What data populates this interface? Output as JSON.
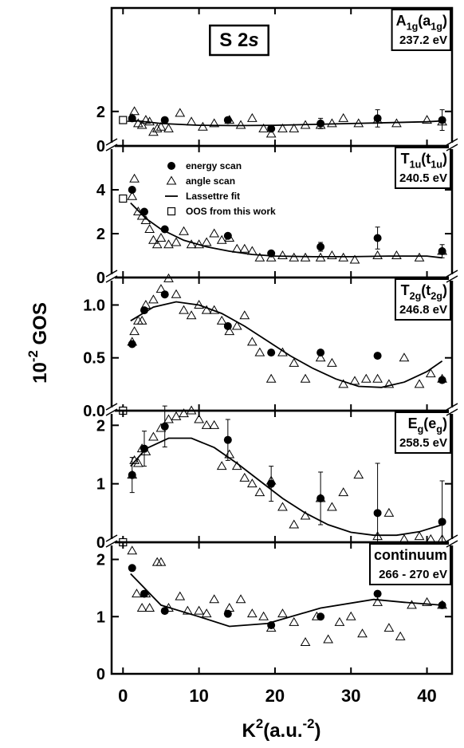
{
  "x_axis": {
    "xlim": [
      -1.5,
      43.3
    ],
    "xticks": [
      0,
      10,
      20,
      30,
      40
    ],
    "label": [
      {
        "text": "K"
      },
      {
        "sup": "2"
      },
      {
        "text": "(a.u."
      },
      {
        "sup": "-2"
      },
      {
        "text": ")"
      }
    ]
  },
  "y_axis": {
    "label": [
      {
        "text": "10"
      },
      {
        "sup": "-2"
      },
      {
        "text": " GOS"
      }
    ]
  },
  "chart_data": [
    {
      "type": "scatter",
      "title": [
        {
          "text": "S 2"
        },
        {
          "italic": "s"
        }
      ],
      "symmetry": [
        {
          "text": "A"
        },
        {
          "sub": "1g"
        },
        {
          "text": "(a"
        },
        {
          "sub": "1g"
        },
        {
          "text": ")"
        }
      ],
      "energy": "237.2 eV",
      "ylim": [
        0,
        8
      ],
      "yticks": [
        0,
        2
      ],
      "series": [
        {
          "marker": "circle",
          "color": "#000000",
          "x": [
            1.2,
            5.5,
            13.8,
            19.5,
            26,
            33.5,
            42
          ],
          "values": [
            1.6,
            1.5,
            1.5,
            1.0,
            1.3,
            1.6,
            1.5
          ],
          "errors": [
            null,
            null,
            null,
            null,
            0.3,
            0.5,
            0.6
          ]
        },
        {
          "marker": "triangle",
          "color": "#000000",
          "x": [
            1.2,
            1.5,
            2.0,
            2.5,
            3,
            3.5,
            4,
            4.5,
            5,
            6,
            7.5,
            9,
            10.5,
            12,
            14,
            15.5,
            17,
            18.5,
            19.5,
            21,
            22.5,
            24,
            26,
            27.5,
            29,
            31,
            33.5,
            36,
            40,
            42
          ],
          "values": [
            1.6,
            2.0,
            1.3,
            1.2,
            1.5,
            1.4,
            0.8,
            1.0,
            1.1,
            1.0,
            1.9,
            1.4,
            1.1,
            1.3,
            1.5,
            1.2,
            1.6,
            1.0,
            0.7,
            1.0,
            1.0,
            1.2,
            1.2,
            1.3,
            1.6,
            1.3,
            1.5,
            1.3,
            1.5,
            1.4
          ]
        },
        {
          "marker": "line",
          "color": "#000000",
          "x": [
            1,
            5,
            10,
            15,
            20,
            25,
            30,
            35,
            40,
            42
          ],
          "values": [
            1.5,
            1.3,
            1.2,
            1.18,
            1.2,
            1.25,
            1.3,
            1.35,
            1.4,
            1.45
          ]
        },
        {
          "marker": "square",
          "color": "#000000",
          "x": [
            0
          ],
          "values": [
            1.5
          ]
        }
      ]
    },
    {
      "type": "scatter",
      "symmetry": [
        {
          "text": "T"
        },
        {
          "sub": "1u"
        },
        {
          "text": "(t"
        },
        {
          "sub": "1u"
        },
        {
          "text": ")"
        }
      ],
      "energy": "240.5 eV",
      "ylim": [
        0,
        6
      ],
      "yticks": [
        0,
        2,
        4
      ],
      "series": [
        {
          "name": "energy scan",
          "marker": "circle",
          "color": "#000000",
          "x": [
            1.2,
            2.8,
            5.5,
            13.8,
            19.5,
            26,
            33.5,
            42
          ],
          "values": [
            4.0,
            3.0,
            2.2,
            1.9,
            1.1,
            1.4,
            1.8,
            1.2
          ],
          "errors": [
            null,
            null,
            null,
            null,
            null,
            0.2,
            0.5,
            0.3
          ]
        },
        {
          "name": "angle scan",
          "marker": "triangle",
          "color": "#000000",
          "x": [
            1.2,
            1.5,
            2,
            2.5,
            3,
            3.5,
            4,
            4.5,
            5,
            6,
            7,
            8,
            9,
            10,
            11,
            12,
            13,
            14,
            15,
            16,
            17,
            18,
            19.5,
            21,
            22.5,
            24,
            26,
            27.5,
            29,
            30.5,
            33.5,
            36,
            39,
            42
          ],
          "values": [
            3.7,
            4.5,
            3.0,
            2.8,
            2.6,
            2.2,
            1.7,
            1.5,
            1.8,
            1.5,
            1.6,
            2.1,
            1.5,
            1.5,
            1.6,
            2.0,
            1.7,
            1.8,
            1.3,
            1.3,
            1.2,
            0.9,
            0.9,
            1.0,
            0.9,
            0.9,
            0.9,
            1.0,
            0.9,
            0.8,
            1.0,
            1.0,
            0.9,
            1.2
          ]
        },
        {
          "name": "Lassettre fit",
          "marker": "line",
          "color": "#000000",
          "x": [
            1,
            3,
            5,
            8,
            11,
            14,
            17,
            20,
            25,
            30,
            35,
            40,
            42
          ],
          "values": [
            3.4,
            2.7,
            2.2,
            1.7,
            1.4,
            1.2,
            1.05,
            0.98,
            0.95,
            0.95,
            0.98,
            0.98,
            0.9
          ]
        },
        {
          "name": "OOS from this work",
          "marker": "square",
          "color": "#000000",
          "x": [
            0
          ],
          "values": [
            3.6
          ]
        }
      ]
    },
    {
      "type": "scatter",
      "symmetry": [
        {
          "text": "T"
        },
        {
          "sub": "2g"
        },
        {
          "text": "(t"
        },
        {
          "sub": "2g"
        },
        {
          "text": ")"
        }
      ],
      "energy": "246.8 eV",
      "ylim": [
        0,
        1.26
      ],
      "yticks": [
        {
          "value": 0,
          "label": "0.0"
        },
        {
          "value": 0.5,
          "label": "0.5"
        },
        {
          "value": 1,
          "label": "1.0"
        }
      ],
      "series": [
        {
          "marker": "circle",
          "color": "#000000",
          "x": [
            1.2,
            2.8,
            5.5,
            13.8,
            19.5,
            26,
            33.5,
            42
          ],
          "values": [
            0.63,
            0.95,
            1.1,
            0.8,
            0.55,
            0.55,
            0.52,
            0.29
          ]
        },
        {
          "marker": "triangle",
          "color": "#000000",
          "x": [
            1.2,
            1.5,
            2,
            2.5,
            3,
            4,
            5,
            6,
            7,
            8,
            9,
            10,
            11,
            12,
            13,
            14,
            15,
            16,
            17,
            18,
            19.5,
            21,
            22.5,
            24,
            26,
            27.5,
            29,
            30.5,
            32,
            33.5,
            35,
            37,
            39,
            40.5,
            42
          ],
          "values": [
            0.65,
            0.75,
            0.85,
            0.85,
            1.0,
            1.05,
            1.15,
            1.25,
            1.1,
            0.95,
            0.9,
            1.0,
            0.95,
            0.95,
            0.85,
            0.75,
            0.8,
            0.9,
            0.65,
            0.55,
            0.3,
            0.55,
            0.45,
            0.3,
            0.5,
            0.45,
            0.25,
            0.28,
            0.3,
            0.3,
            0.25,
            0.5,
            0.25,
            0.35,
            0.3
          ]
        },
        {
          "marker": "line",
          "color": "#000000",
          "x": [
            1,
            4,
            7,
            10,
            13,
            16,
            19,
            22,
            25,
            28,
            31,
            34,
            37,
            40,
            42
          ],
          "values": [
            0.85,
            0.98,
            1.03,
            1.0,
            0.92,
            0.8,
            0.66,
            0.52,
            0.4,
            0.3,
            0.23,
            0.22,
            0.27,
            0.37,
            0.47
          ]
        },
        {
          "marker": "square",
          "color": "#000000",
          "x": [
            0
          ],
          "values": [
            0
          ]
        }
      ]
    },
    {
      "type": "scatter",
      "symmetry": [
        {
          "text": "E"
        },
        {
          "sub": "g"
        },
        {
          "text": "(e"
        },
        {
          "sub": "g"
        },
        {
          "text": ")"
        }
      ],
      "energy": "258.5 eV",
      "ylim": [
        0,
        2.25
      ],
      "yticks": [
        0,
        1,
        2
      ],
      "series": [
        {
          "marker": "circle",
          "color": "#000000",
          "x": [
            1.2,
            2.8,
            5.5,
            13.8,
            19.5,
            26,
            33.5,
            42
          ],
          "values": [
            1.15,
            1.6,
            1.98,
            1.75,
            1.0,
            0.75,
            0.5,
            0.35
          ],
          "errors": [
            0.3,
            0.3,
            0.35,
            0.35,
            0.3,
            0.45,
            0.85,
            0.7
          ]
        },
        {
          "marker": "triangle",
          "color": "#000000",
          "x": [
            1.2,
            1.5,
            2,
            2.5,
            3,
            4,
            5,
            6,
            7,
            8,
            9,
            10,
            11,
            12,
            13,
            14,
            15,
            16,
            17,
            18,
            19.5,
            21,
            22.5,
            24,
            26,
            27.5,
            29,
            31,
            33.5,
            35,
            37,
            39,
            40.5,
            42
          ],
          "values": [
            1.15,
            1.4,
            1.35,
            1.6,
            1.55,
            1.8,
            1.95,
            2.1,
            2.15,
            2.2,
            2.25,
            2.1,
            2.0,
            2.0,
            1.3,
            1.5,
            1.3,
            1.1,
            1.0,
            0.85,
            1.05,
            0.6,
            0.3,
            0.45,
            0.75,
            0.6,
            0.85,
            1.15,
            0.1,
            0.5,
            0.05,
            0.1,
            0.05,
            0.05
          ]
        },
        {
          "marker": "line",
          "color": "#000000",
          "x": [
            1,
            3,
            6,
            9,
            12,
            15,
            18,
            21,
            24,
            27,
            30,
            33,
            36,
            39,
            42
          ],
          "values": [
            1.3,
            1.6,
            1.78,
            1.78,
            1.62,
            1.35,
            1.05,
            0.75,
            0.5,
            0.3,
            0.17,
            0.12,
            0.12,
            0.18,
            0.3
          ]
        },
        {
          "marker": "square",
          "color": "#000000",
          "x": [
            0
          ],
          "values": [
            0
          ]
        }
      ]
    },
    {
      "type": "scatter",
      "symmetry": [
        {
          "text": "continuum"
        }
      ],
      "energy": "266 - 270 eV",
      "ylim": [
        0,
        2.3
      ],
      "yticks": [
        0,
        1,
        2
      ],
      "series": [
        {
          "marker": "circle",
          "color": "#000000",
          "x": [
            1.2,
            2.8,
            5.5,
            13.8,
            19.5,
            26,
            33.5,
            42
          ],
          "values": [
            1.85,
            1.4,
            1.1,
            1.05,
            0.85,
            1.0,
            1.4,
            1.2
          ]
        },
        {
          "marker": "triangle",
          "color": "#000000",
          "x": [
            1.2,
            1.8,
            2.5,
            3,
            3.5,
            4.5,
            5,
            6,
            7.5,
            8.5,
            10,
            11,
            12,
            14,
            15.5,
            17,
            18.5,
            19.5,
            21,
            22.5,
            24,
            25.5,
            27,
            28.5,
            30,
            31.5,
            33.5,
            35,
            36.5,
            38,
            40,
            42
          ],
          "values": [
            2.15,
            1.4,
            1.15,
            1.4,
            1.15,
            1.95,
            1.95,
            1.15,
            1.35,
            1.1,
            1.1,
            1.05,
            1.3,
            1.15,
            1.3,
            1.05,
            1.0,
            0.8,
            1.05,
            0.9,
            0.55,
            1.0,
            0.6,
            0.9,
            1.0,
            0.7,
            1.25,
            0.8,
            0.65,
            1.2,
            1.25,
            1.2
          ]
        },
        {
          "marker": "line",
          "color": "#000000",
          "x": [
            1,
            5,
            10,
            14,
            19,
            26,
            33,
            37,
            42
          ],
          "values": [
            1.75,
            1.2,
            1.0,
            0.83,
            0.88,
            1.15,
            1.3,
            1.25,
            1.2
          ]
        }
      ]
    }
  ]
}
